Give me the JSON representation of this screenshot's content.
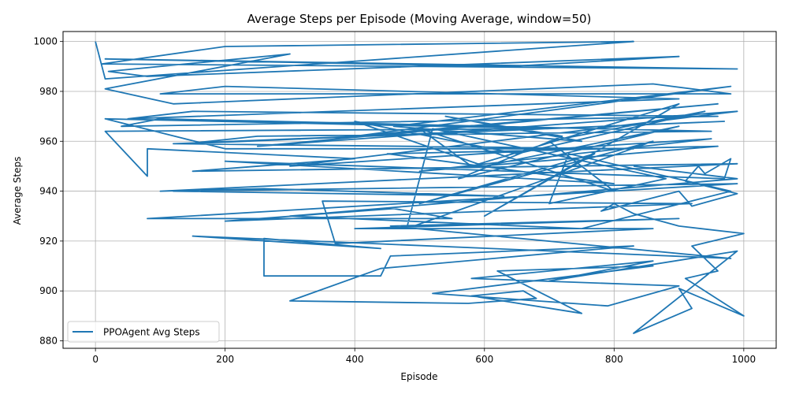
{
  "chart_data": {
    "type": "line",
    "title": "Average Steps per Episode (Moving Average, window=50)",
    "xlabel": "Episode",
    "ylabel": "Average Steps",
    "xlim": [
      -50,
      1050
    ],
    "ylim": [
      877,
      1004
    ],
    "xticks": [
      0,
      200,
      400,
      600,
      800,
      1000
    ],
    "yticks": [
      880,
      900,
      920,
      940,
      960,
      980,
      1000
    ],
    "grid": true,
    "legend_position": "lower-left",
    "color": "#1f77b4",
    "series": [
      {
        "name": "PPOAgent Avg Steps",
        "x": [
          0,
          15,
          830,
          200,
          10,
          990,
          15,
          640,
          900,
          80,
          20,
          300,
          15,
          120,
          860,
          980,
          100,
          200,
          900,
          50,
          150,
          960,
          40,
          100,
          950,
          250,
          140,
          970,
          120,
          830,
          200,
          15,
          700,
          15,
          80,
          80,
          400,
          150,
          990,
          100,
          260,
          630,
          120,
          990,
          80,
          550,
          460,
          200,
          920,
          350,
          370,
          860,
          400,
          900,
          455,
          980,
          150,
          440,
          260,
          260,
          440,
          455,
          830,
          440,
          300,
          575,
          680,
          660,
          580,
          750,
          620,
          860,
          520,
          790,
          900,
          580,
          860,
          700,
          990,
          830,
          920,
          900,
          1000,
          910,
          960,
          920,
          1000,
          900,
          830,
          800,
          780,
          900,
          920,
          990,
          910,
          930,
          940,
          980,
          970,
          200,
          800,
          450,
          960,
          500,
          950,
          300,
          990,
          250,
          960,
          400,
          980,
          460,
          750,
          540,
          720,
          560,
          900,
          600,
          400,
          650,
          940,
          700,
          800,
          500,
          580,
          900,
          600,
          770,
          500,
          860,
          480,
          520,
          880,
          700,
          730,
          980,
          750,
          300,
          990,
          830
        ],
        "y": [
          1000,
          985,
          1000,
          998,
          991,
          989,
          993,
          990,
          994,
          986,
          988,
          995,
          981,
          975,
          983,
          979,
          979,
          982,
          977,
          969,
          972,
          970,
          966,
          969,
          964,
          962,
          959,
          968,
          959,
          957,
          957,
          969,
          965,
          964,
          946,
          957,
          953,
          948,
          951,
          940,
          941,
          938,
          940,
          943,
          929,
          929,
          933,
          928,
          935,
          936,
          919,
          925,
          925,
          929,
          926,
          913,
          922,
          917,
          921,
          906,
          906,
          914,
          918,
          909,
          896,
          895,
          897,
          900,
          898,
          891,
          908,
          910,
          899,
          894,
          902,
          905,
          912,
          904,
          916,
          883,
          893,
          901,
          890,
          905,
          908,
          918,
          923,
          926,
          931,
          935,
          932,
          940,
          934,
          939,
          944,
          950,
          947,
          953,
          945,
          952,
          943,
          955,
          958,
          948,
          961,
          950,
          972,
          958,
          975,
          962,
          982,
          966,
          960,
          970,
          962,
          945,
          966,
          950,
          968,
          955,
          972,
          960,
          940,
          965,
          950,
          975,
          930,
          955,
          935,
          960,
          925,
          965,
          945,
          935,
          955,
          940,
          925,
          930,
          945,
          950
        ]
      }
    ]
  }
}
